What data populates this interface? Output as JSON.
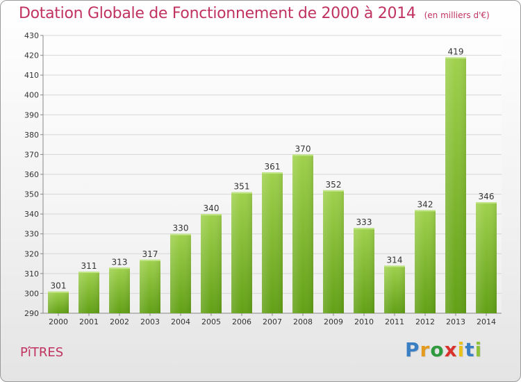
{
  "header": {
    "title": "Dotation Globale de Fonctionnement de 2000 à 2014",
    "subtitle": "(en milliers d'€)"
  },
  "footer": {
    "commune": "PîTRES",
    "brand_letters": [
      "P",
      "r",
      "o",
      "x",
      "i",
      "t",
      "i"
    ],
    "brand_colors": [
      "#3a7fc4",
      "#e39a1e",
      "#2f9a3d",
      "#d9322d",
      "#e8c21b",
      "#3a7fc4",
      "#8fc23a"
    ]
  },
  "chart_data": {
    "type": "bar",
    "categories": [
      "2000",
      "2001",
      "2002",
      "2003",
      "2004",
      "2005",
      "2006",
      "2007",
      "2008",
      "2009",
      "2010",
      "2011",
      "2012",
      "2013",
      "2014"
    ],
    "values": [
      301,
      311,
      313,
      317,
      330,
      340,
      351,
      361,
      370,
      352,
      333,
      314,
      342,
      419,
      346
    ],
    "ylim": [
      290,
      430
    ],
    "yticks": [
      290,
      300,
      310,
      320,
      330,
      340,
      350,
      360,
      370,
      380,
      390,
      400,
      410,
      420,
      430
    ],
    "grid": true,
    "bar_color": "#8dc63f",
    "title": "Dotation Globale de Fonctionnement de 2000 à 2014",
    "subtitle": "(en milliers d'€)",
    "xlabel": "",
    "ylabel": ""
  }
}
